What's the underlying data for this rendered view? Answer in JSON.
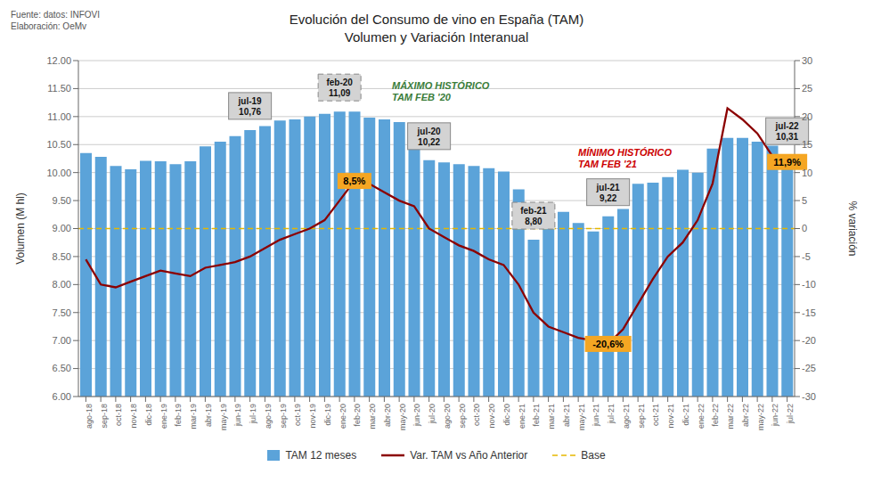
{
  "chart_data": {
    "type": "bar",
    "title": "Evolución del Consumo de vino en España (TAM)",
    "subtitle": "Volumen y Variación Interanual",
    "source": "Fuente: datos: INFOVI\nElaboración: OeMv",
    "y_label": "Volumen (M hl)",
    "y2_label": "% variación",
    "categories": [
      "ago-18",
      "sep-18",
      "oct-18",
      "nov-18",
      "dic-18",
      "ene-19",
      "feb-19",
      "mar-19",
      "abr-19",
      "may-19",
      "jun-19",
      "jul-19",
      "ago-19",
      "sep-19",
      "oct-19",
      "nov-19",
      "dic-19",
      "ene-20",
      "feb-20",
      "mar-20",
      "abr-20",
      "may-20",
      "jun-20",
      "jul-20",
      "ago-20",
      "sep-20",
      "oct-20",
      "nov-20",
      "dic-20",
      "ene-21",
      "feb-21",
      "mar-21",
      "abr-21",
      "may-21",
      "jun-21",
      "jul-21",
      "ago-21",
      "sep-21",
      "oct-21",
      "nov-21",
      "dic-21",
      "ene-22",
      "feb-22",
      "mar-22",
      "abr-22",
      "may-22",
      "jun-22",
      "jul-22"
    ],
    "series": [
      {
        "name": "TAM 12 meses",
        "type": "bar",
        "color": "#5ba3d9",
        "values": [
          10.35,
          10.28,
          10.12,
          10.06,
          10.21,
          10.2,
          10.15,
          10.2,
          10.47,
          10.55,
          10.65,
          10.76,
          10.83,
          10.93,
          10.95,
          11.0,
          11.05,
          11.09,
          11.09,
          10.98,
          10.95,
          10.9,
          10.75,
          10.22,
          10.18,
          10.15,
          10.12,
          10.08,
          10.02,
          9.7,
          8.8,
          9.1,
          9.3,
          9.1,
          8.95,
          9.22,
          9.35,
          9.8,
          9.82,
          9.92,
          10.05,
          10.0,
          10.43,
          10.62,
          10.62,
          10.55,
          10.48,
          10.31
        ]
      },
      {
        "name": "Var. TAM vs Año Anterior",
        "type": "line",
        "color": "#8b0000",
        "axis": "y2",
        "values": [
          -5.5,
          -10.0,
          -10.5,
          -9.5,
          -8.5,
          -7.5,
          -8.0,
          -8.5,
          -7.0,
          -6.5,
          -6.0,
          -5.0,
          -3.5,
          -2.0,
          -1.0,
          0.0,
          1.5,
          5.0,
          8.5,
          8.0,
          6.5,
          5.0,
          4.0,
          0.0,
          -1.5,
          -3.0,
          -4.0,
          -5.5,
          -6.5,
          -10.0,
          -15.0,
          -17.5,
          -18.5,
          -19.5,
          -20.0,
          -20.6,
          -18.0,
          -13.5,
          -9.0,
          -5.0,
          -2.5,
          1.5,
          8.0,
          21.5,
          19.5,
          17.0,
          13.0,
          11.9
        ]
      }
    ],
    "reference_lines": [
      {
        "name": "Base",
        "value": 9.0,
        "color": "#e6b800",
        "line_style": "dashed"
      }
    ],
    "ylim": [
      6.0,
      12.0
    ],
    "yticks": [
      {
        "value": 6.0,
        "label": "6.00"
      },
      {
        "value": 6.5,
        "label": "6.50"
      },
      {
        "value": 7.0,
        "label": "7.00"
      },
      {
        "value": 7.5,
        "label": "7.50"
      },
      {
        "value": 8.0,
        "label": "8.00"
      },
      {
        "value": 8.5,
        "label": "8.50"
      },
      {
        "value": 9.0,
        "label": "9.00"
      },
      {
        "value": 9.5,
        "label": "9.50"
      },
      {
        "value": 10.0,
        "label": "10.00"
      },
      {
        "value": 10.5,
        "label": "10.50"
      },
      {
        "value": 11.0,
        "label": "11.00"
      },
      {
        "value": 11.5,
        "label": "11.50"
      },
      {
        "value": 12.0,
        "label": "12.00"
      }
    ],
    "y2lim": [
      -30,
      30
    ],
    "y2ticks": [
      -30,
      -25,
      -20,
      -15,
      -10,
      -5,
      0,
      5,
      10,
      15,
      20,
      25,
      30
    ],
    "grid": true,
    "legend": "bottom",
    "annotations": [
      {
        "text": "jul-19\n10,76",
        "category": "jul-19",
        "value": 10.76,
        "color": "#d3d3d3",
        "line_style": "solid"
      },
      {
        "text": "feb-20\n11,09",
        "category": "ene-20",
        "value": 11.09,
        "color": "#d3d3d3",
        "line_style": "dashed"
      },
      {
        "text": "jul-20\n10,22",
        "category": "jul-20",
        "value": 10.22,
        "color": "#d3d3d3",
        "line_style": "solid"
      },
      {
        "text": "feb-21\n8,80",
        "category": "feb-21",
        "value": 8.8,
        "color": "#d3d3d3",
        "line_style": "dashed"
      },
      {
        "text": "jul-21\n9,22",
        "category": "jul-21",
        "value": 9.22,
        "color": "#d3d3d3",
        "line_style": "solid"
      },
      {
        "text": "jul-22\n10,31",
        "category": "jul-22",
        "value": 10.31,
        "color": "#d3d3d3",
        "line_style": "solid"
      },
      {
        "text": "8,5%",
        "category": "feb-20",
        "value": 8.5,
        "axis": "y2",
        "color": "#f5a623",
        "marker": "circle"
      },
      {
        "text": "-20,6%",
        "category": "jul-21",
        "value": -20.6,
        "axis": "y2",
        "color": "#f5a623",
        "marker": "circle"
      },
      {
        "text": "11,9%",
        "category": "jul-22",
        "value": 11.9,
        "axis": "y2",
        "color": "#f5a623",
        "marker": "circle"
      },
      {
        "text": "MÁXIMO HISTÓRICO\nTAM FEB '20",
        "color": "#3a7d3a"
      },
      {
        "text": "MÍNIMO HISTÓRICO\nTAM FEB '21",
        "color": "#cc0000"
      }
    ]
  }
}
